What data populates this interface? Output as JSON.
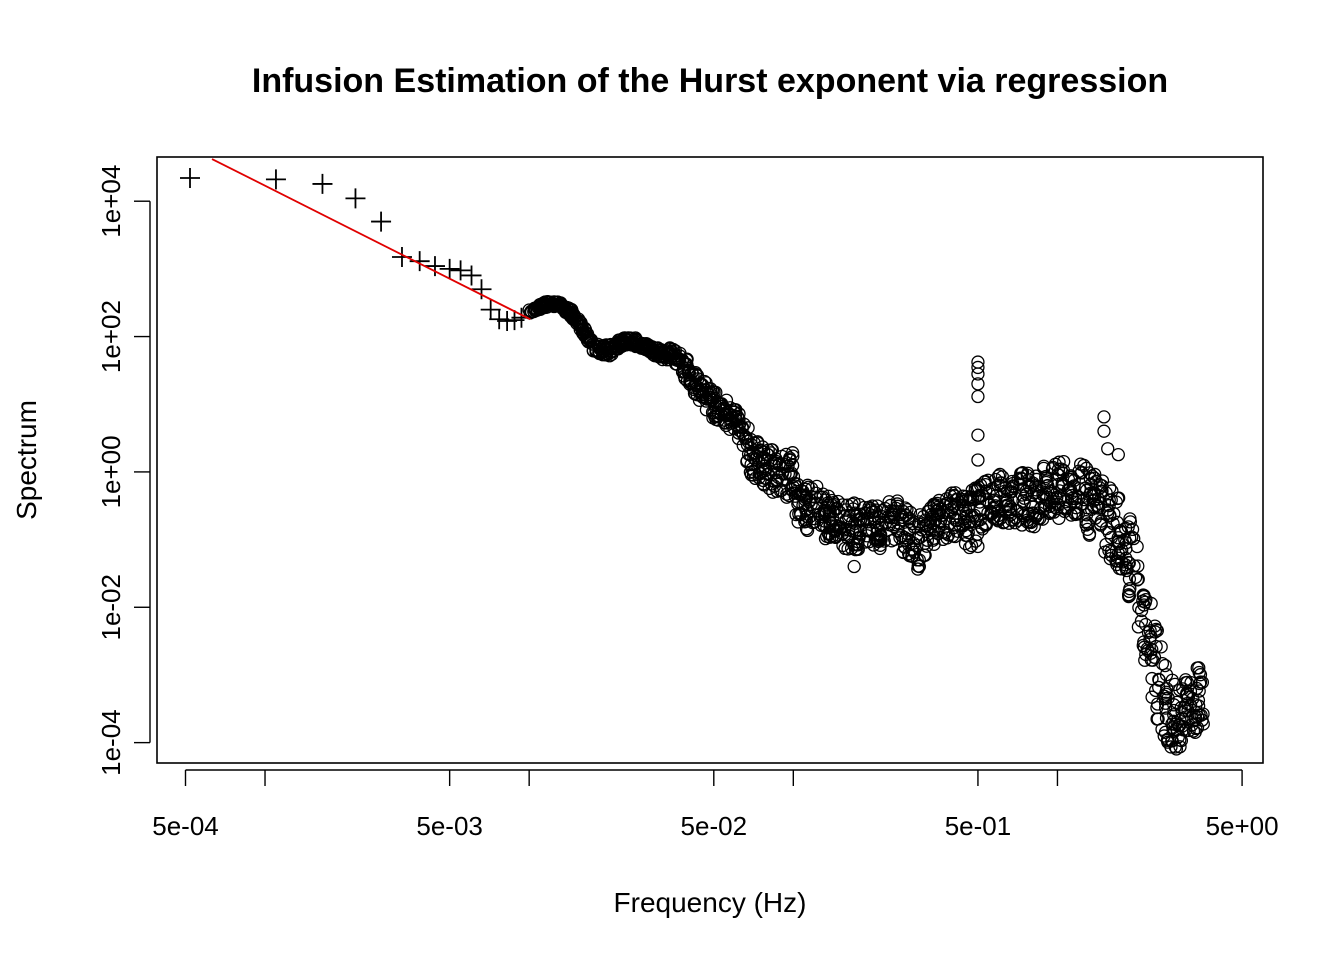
{
  "chart_data": {
    "type": "scatter",
    "title": "Infusion Estimation of the Hurst exponent via regression",
    "xlabel": "Frequency (Hz)",
    "ylabel": "Spectrum",
    "x_scale": "log",
    "y_scale": "log",
    "xlim": [
      0.00039,
      6.0
    ],
    "ylim": [
      5e-05,
      45000
    ],
    "x_ticks": [
      0.0005,
      0.001,
      0.005,
      0.01,
      0.05,
      0.1,
      0.5,
      1,
      5
    ],
    "x_tick_labels": [
      "5e-04",
      "",
      "5e-03",
      "",
      "5e-02",
      "",
      "5e-01",
      "",
      "5e+00"
    ],
    "y_ticks": [
      0.0001,
      0.01,
      1,
      100,
      10000
    ],
    "y_tick_labels": [
      "1e-04",
      "1e-02",
      "1e+00",
      "1e+02",
      "1e+04"
    ],
    "grid": false,
    "legend": "none",
    "regression_line": {
      "color": "#e00000",
      "points": [
        [
          0.00063,
          42000
        ],
        [
          0.0101,
          180
        ]
      ]
    },
    "series": [
      {
        "marker": "plus",
        "x": [
          0.00052,
          0.0011,
          0.00165,
          0.0022,
          0.00275,
          0.0033,
          0.00385,
          0.0044,
          0.005,
          0.0055,
          0.00605,
          0.0066,
          0.00715,
          0.0077,
          0.00825,
          0.0088,
          0.00935
        ],
        "y": [
          22000,
          21000,
          18000,
          11000,
          5000,
          1500,
          1300,
          1100,
          1000,
          950,
          800,
          500,
          250,
          180,
          170,
          175,
          190
        ]
      },
      {
        "marker": "open-circle",
        "envelope": [
          [
            0.01,
            210,
            250
          ],
          [
            0.0115,
            270,
            330
          ],
          [
            0.013,
            270,
            330
          ],
          [
            0.0145,
            190,
            250
          ],
          [
            0.016,
            110,
            150
          ],
          [
            0.0175,
            60,
            80
          ],
          [
            0.02,
            50,
            75
          ],
          [
            0.023,
            75,
            100
          ],
          [
            0.026,
            70,
            95
          ],
          [
            0.029,
            55,
            75
          ],
          [
            0.032,
            45,
            65
          ],
          [
            0.035,
            45,
            70
          ],
          [
            0.04,
            20,
            45
          ],
          [
            0.045,
            10,
            25
          ],
          [
            0.05,
            6,
            16
          ],
          [
            0.055,
            5,
            13
          ],
          [
            0.062,
            3,
            9
          ],
          [
            0.07,
            0.8,
            3.5
          ],
          [
            0.078,
            0.6,
            2.3
          ],
          [
            0.09,
            0.4,
            2.0
          ],
          [
            0.1,
            0.4,
            2.0
          ],
          [
            0.105,
            0.12,
            0.6
          ],
          [
            0.12,
            0.15,
            0.7
          ],
          [
            0.14,
            0.08,
            0.4
          ],
          [
            0.17,
            0.07,
            0.35
          ],
          [
            0.2,
            0.07,
            0.32
          ],
          [
            0.25,
            0.08,
            0.4
          ],
          [
            0.29,
            0.03,
            0.22
          ],
          [
            0.35,
            0.1,
            0.4
          ],
          [
            0.42,
            0.1,
            0.55
          ],
          [
            0.49,
            0.06,
            0.7
          ],
          [
            0.55,
            0.2,
            0.9
          ],
          [
            0.65,
            0.15,
            1.0
          ],
          [
            0.8,
            0.15,
            1.1
          ],
          [
            1.0,
            0.2,
            1.4
          ],
          [
            1.2,
            0.15,
            1.5
          ],
          [
            1.4,
            0.08,
            0.9
          ],
          [
            1.6,
            0.05,
            0.7
          ],
          [
            1.8,
            0.02,
            0.35
          ],
          [
            2.0,
            0.005,
            0.1
          ],
          [
            2.2,
            0.0008,
            0.02
          ],
          [
            2.4,
            0.0002,
            0.006
          ],
          [
            2.6,
            0.0001,
            0.001
          ],
          [
            2.8,
            7e-05,
            0.0008
          ],
          [
            3.0,
            0.0001,
            0.0009
          ],
          [
            3.2,
            0.00012,
            0.0012
          ],
          [
            3.4,
            0.00015,
            0.0013
          ],
          [
            3.6,
            0.00015,
            0.0012
          ]
        ],
        "outliers": [
          [
            0.5,
            42
          ],
          [
            0.5,
            35
          ],
          [
            0.5,
            28
          ],
          [
            0.5,
            20
          ],
          [
            0.5,
            13
          ],
          [
            0.5,
            3.5
          ],
          [
            0.5,
            1.5
          ],
          [
            1.5,
            6.5
          ],
          [
            1.5,
            4
          ],
          [
            1.55,
            2.2
          ],
          [
            1.7,
            1.8
          ],
          [
            0.3,
            0.04
          ],
          [
            0.3,
            0.05
          ],
          [
            0.17,
            0.04
          ]
        ]
      }
    ]
  }
}
